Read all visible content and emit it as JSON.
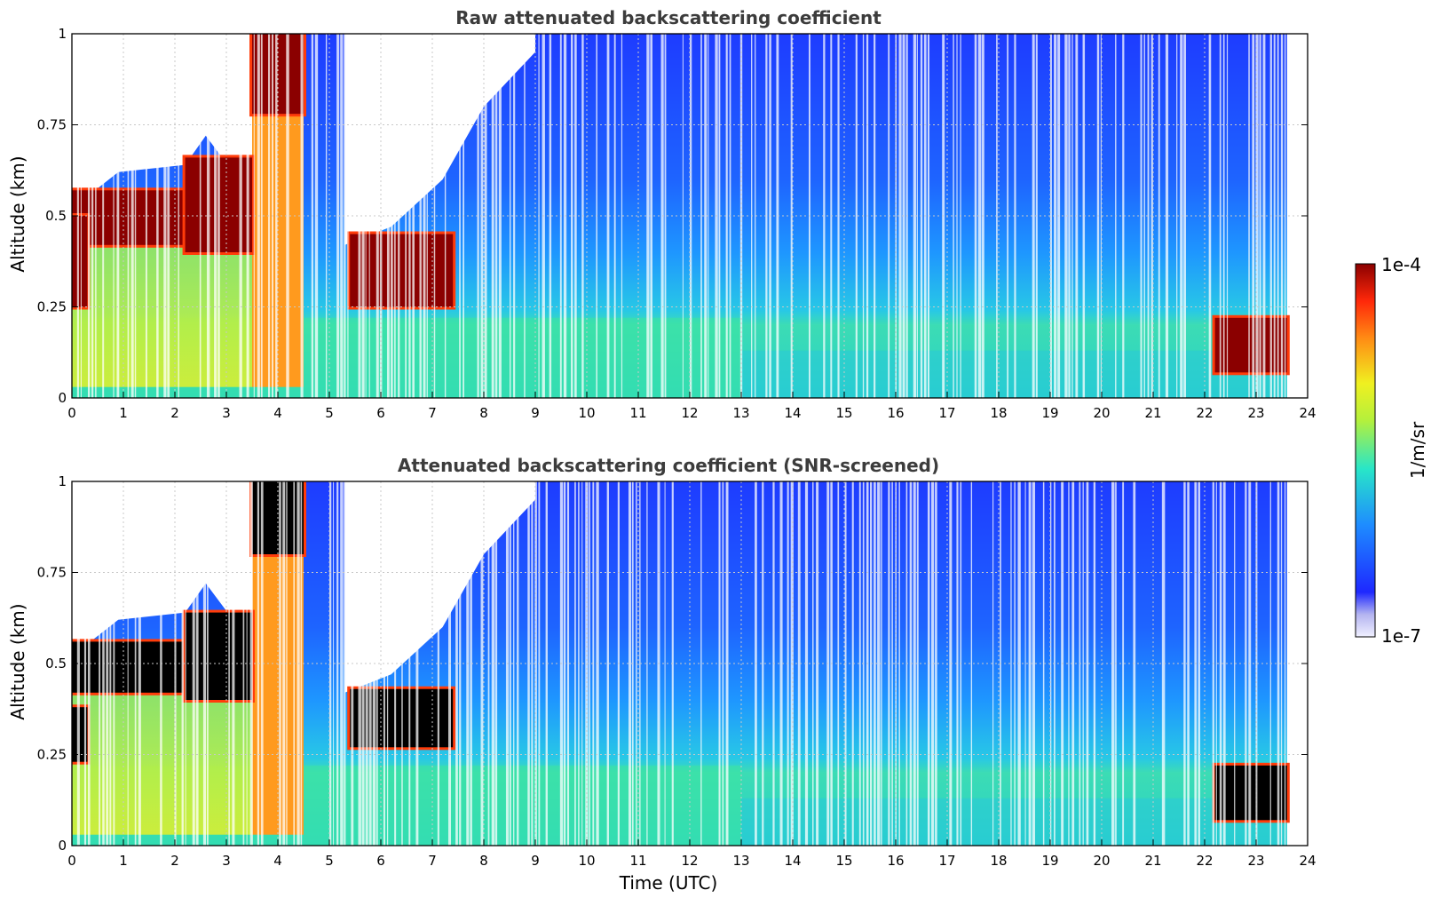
{
  "colors": {
    "very_low": "#e8e8fa",
    "low": "#1e3cff",
    "mid": "#28e6c8",
    "high_mid": "#f0f020",
    "high": "#ff5010",
    "max": "#8b0000",
    "screened_max": "#000000",
    "grid": "#c8c8c8"
  },
  "chart_data": [
    {
      "type": "heatmap",
      "title": "Raw attenuated backscattering coefficient",
      "xlabel": "",
      "ylabel": "Altitude (km)",
      "xlim": [
        0,
        24
      ],
      "ylim": [
        0,
        1
      ],
      "x_ticks": [
        "0",
        "1",
        "2",
        "3",
        "4",
        "5",
        "6",
        "7",
        "8",
        "9",
        "10",
        "11",
        "12",
        "13",
        "14",
        "15",
        "16",
        "17",
        "18",
        "19",
        "20",
        "21",
        "22",
        "23",
        "24"
      ],
      "y_ticks": [
        "0",
        "0.25",
        "0.5",
        "0.75",
        "1"
      ],
      "grid": true,
      "screened": false,
      "high_layers": [
        {
          "x": [
            0.0,
            2.2
          ],
          "y": [
            0.42,
            0.57
          ]
        },
        {
          "x": [
            2.2,
            3.5
          ],
          "y": [
            0.4,
            0.66
          ]
        },
        {
          "x": [
            0.0,
            0.3
          ],
          "y": [
            0.25,
            0.5
          ]
        },
        {
          "x": [
            3.5,
            4.5
          ],
          "y": [
            0.78,
            1.0
          ]
        },
        {
          "x": [
            5.4,
            7.4
          ],
          "y": [
            0.25,
            0.45
          ]
        },
        {
          "x": [
            22.2,
            23.6
          ],
          "y": [
            0.07,
            0.22
          ]
        }
      ],
      "aerosol_layer_top_km": [
        0.22,
        0.22,
        0.22,
        0.22,
        0.22,
        0.21,
        0.2,
        0.18,
        0.16,
        0.14,
        0.12,
        0.12,
        0.12,
        0.12
      ],
      "data_end_hour": 23.6
    },
    {
      "type": "heatmap",
      "title": "Attenuated backscattering coefficient (SNR-screened)",
      "xlabel": "Time (UTC)",
      "ylabel": "Altitude (km)",
      "xlim": [
        0,
        24
      ],
      "ylim": [
        0,
        1
      ],
      "x_ticks": [
        "0",
        "1",
        "2",
        "3",
        "4",
        "5",
        "6",
        "7",
        "8",
        "9",
        "10",
        "11",
        "12",
        "13",
        "14",
        "15",
        "16",
        "17",
        "18",
        "19",
        "20",
        "21",
        "22",
        "23",
        "24"
      ],
      "y_ticks": [
        "0",
        "0.25",
        "0.5",
        "0.75",
        "1"
      ],
      "grid": true,
      "screened": true,
      "high_layers": [
        {
          "x": [
            0.0,
            2.2
          ],
          "y": [
            0.42,
            0.56
          ]
        },
        {
          "x": [
            2.2,
            3.5
          ],
          "y": [
            0.4,
            0.64
          ]
        },
        {
          "x": [
            0.0,
            0.3
          ],
          "y": [
            0.23,
            0.38
          ]
        },
        {
          "x": [
            3.5,
            4.5
          ],
          "y": [
            0.8,
            1.0
          ]
        },
        {
          "x": [
            5.4,
            7.4
          ],
          "y": [
            0.27,
            0.43
          ]
        },
        {
          "x": [
            22.2,
            23.6
          ],
          "y": [
            0.07,
            0.22
          ]
        }
      ],
      "data_end_hour": 23.6
    }
  ],
  "colorbar": {
    "max_label": "1e-4",
    "min_label": "1e-7",
    "unit_label": "1/m/sr"
  }
}
